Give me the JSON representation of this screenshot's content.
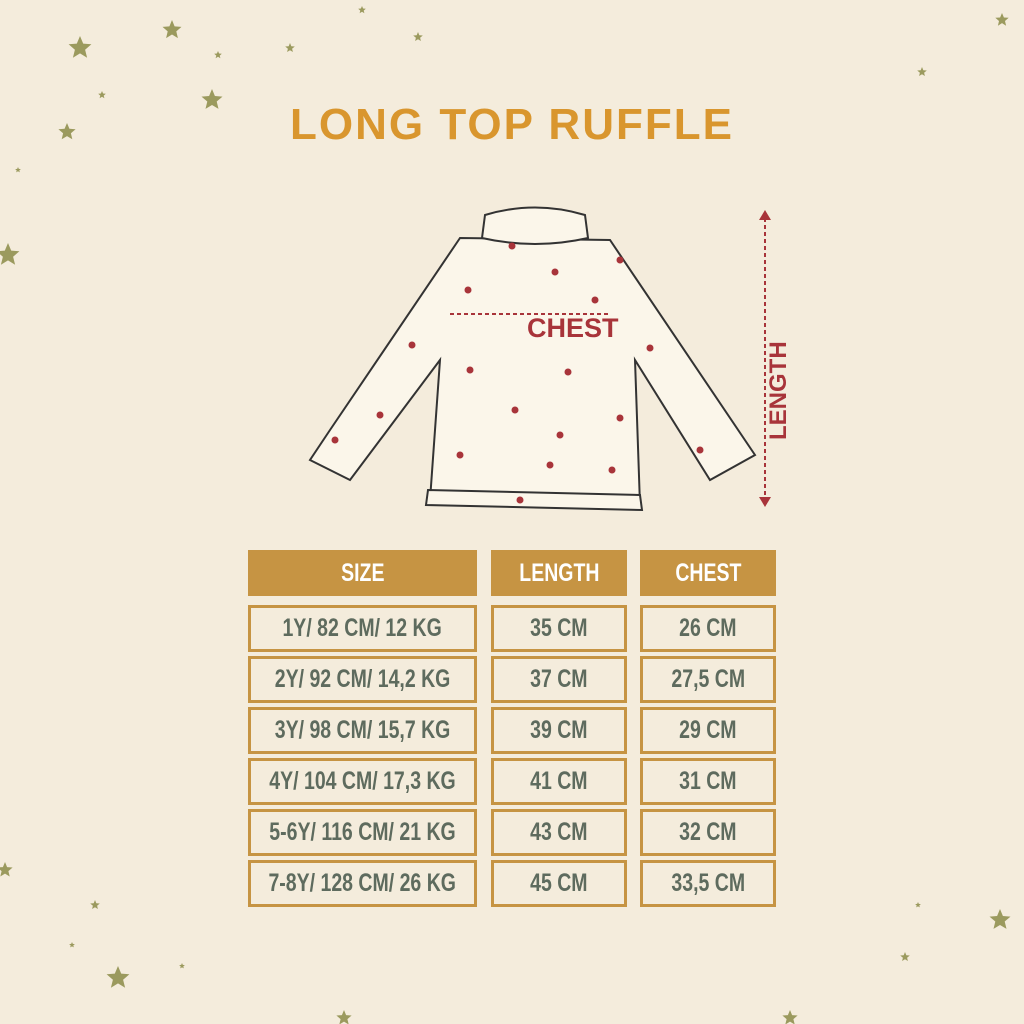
{
  "title": "LONG TOP RUFFLE",
  "diagram": {
    "chest_label": "CHEST",
    "length_label": "LENGTH",
    "accent_color": "#a8343a"
  },
  "table": {
    "headers": [
      "SIZE",
      "LENGTH",
      "CHEST"
    ],
    "rows": [
      [
        "1Y/ 82 CM/ 12 KG",
        "35 CM",
        "26 CM"
      ],
      [
        "2Y/ 92 CM/ 14,2 KG",
        "37 CM",
        "27,5 CM"
      ],
      [
        "3Y/ 98 CM/ 15,7 KG",
        "39 CM",
        "29 CM"
      ],
      [
        "4Y/ 104 CM/ 17,3 KG",
        "41 CM",
        "31 CM"
      ],
      [
        "5-6Y/ 116 CM/ 21 KG",
        "43 CM",
        "32 CM"
      ],
      [
        "7-8Y/ 128 CM/ 26 KG",
        "45 CM",
        "33,5 CM"
      ]
    ]
  },
  "colors": {
    "background": "#f4ecdc",
    "title": "#d9962e",
    "header": "#c69443",
    "text": "#5e6b5e",
    "star": "#9b9a5e"
  }
}
